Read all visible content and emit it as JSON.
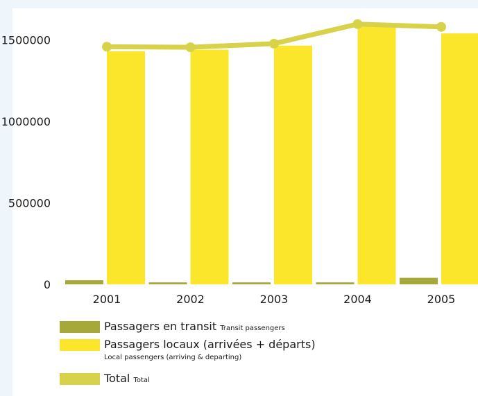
{
  "chart_data": {
    "type": "bar",
    "categories": [
      "2001",
      "2002",
      "2003",
      "2004",
      "2005"
    ],
    "series": [
      {
        "key": "transit",
        "name": "Passagers en transit",
        "name_en": "Transit passengers",
        "kind": "bar",
        "color": "#a7a83a",
        "values": [
          25000,
          12000,
          12000,
          12000,
          40000
        ]
      },
      {
        "key": "local",
        "name": "Passagers locaux (arrivées + départs)",
        "name_en": "Local passengers (arriving & departing)",
        "kind": "bar",
        "color": "#fbe62b",
        "values": [
          1430000,
          1440000,
          1465000,
          1585000,
          1540000
        ]
      },
      {
        "key": "total",
        "name": "Total",
        "name_en": "Total",
        "kind": "line",
        "color": "#d8d24a",
        "values": [
          1458000,
          1455000,
          1477000,
          1597000,
          1580000
        ]
      }
    ],
    "y_ticks": [
      "0",
      "500000",
      "1000000",
      "1500000"
    ],
    "ylim": [
      0,
      1630000
    ],
    "grid": false,
    "legend_position": "bottom-left"
  }
}
